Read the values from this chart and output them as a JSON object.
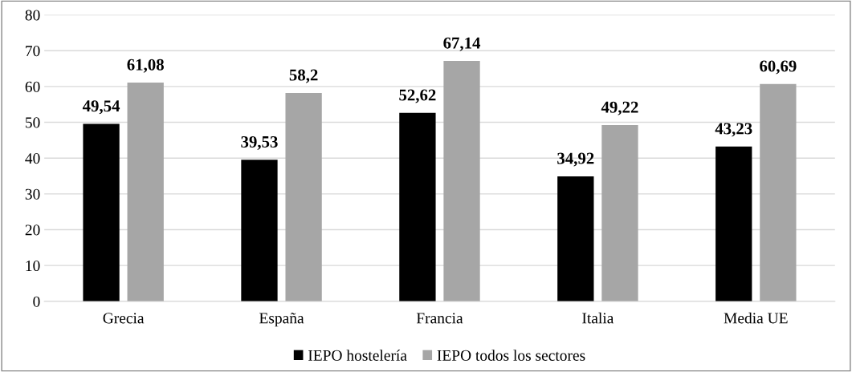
{
  "chart_data": {
    "type": "bar",
    "categories": [
      "Grecia",
      "España",
      "Francia",
      "Italia",
      "Media UE"
    ],
    "series": [
      {
        "name": "IEPO hostelería",
        "color": "#000000",
        "values": [
          49.54,
          39.53,
          52.62,
          34.92,
          43.23
        ],
        "value_labels": [
          "49,54",
          "39,53",
          "52,62",
          "34,92",
          "43,23"
        ]
      },
      {
        "name": "IEPO todos los sectores",
        "color": "#a6a6a6",
        "values": [
          61.08,
          58.2,
          67.14,
          49.22,
          60.69
        ],
        "value_labels": [
          "61,08",
          "58,2",
          "67,14",
          "49,22",
          "60,69"
        ]
      }
    ],
    "ylim": [
      0,
      80
    ],
    "yticks": [
      0,
      10,
      20,
      30,
      40,
      50,
      60,
      70,
      80
    ],
    "grid": "y",
    "legend": "bottom"
  }
}
